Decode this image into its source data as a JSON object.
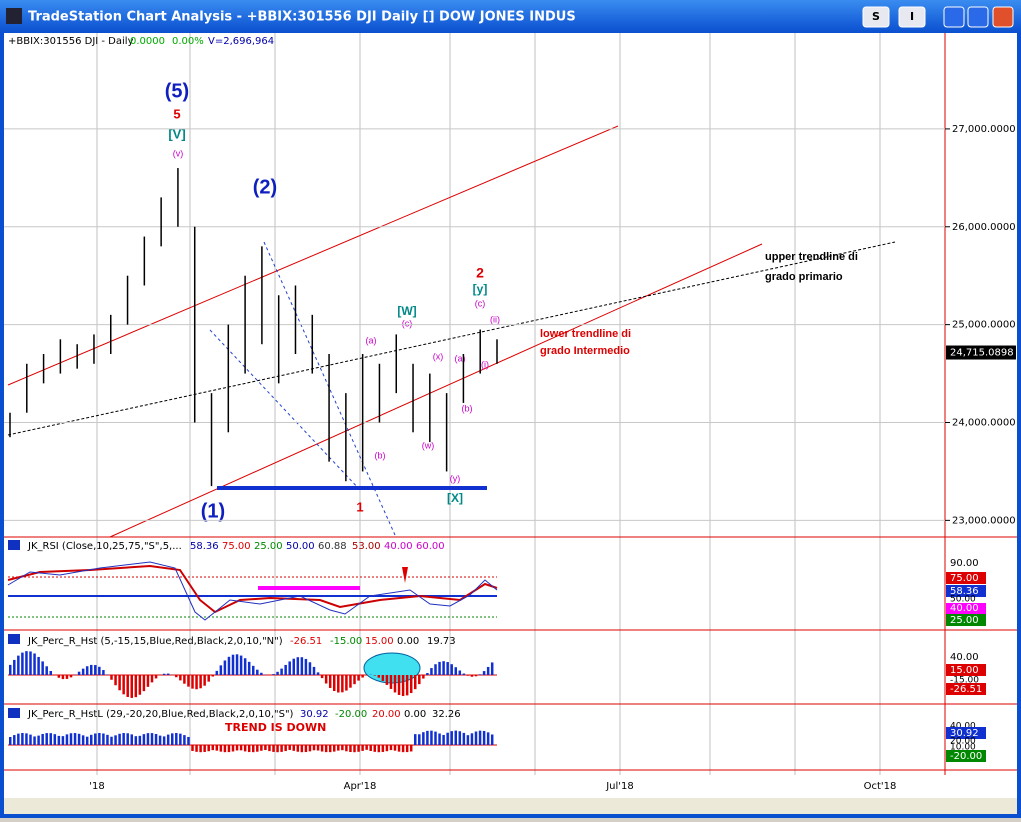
{
  "window": {
    "title": "TradeStation Chart Analysis - +BBIX:301556 DJI Daily [] DOW JONES INDUS",
    "buttons": [
      "S",
      "I"
    ]
  },
  "header": {
    "symbol": "+BBIX:301556 DJI - Daily",
    "change": "0.0000",
    "change_pct": "0.00%",
    "volume": "V=2,696,964"
  },
  "price": {
    "ylim": [
      22830,
      27980
    ],
    "yticks": [
      {
        "value": 27000,
        "label": "27,000.0000"
      },
      {
        "value": 26000,
        "label": "26,000.0000"
      },
      {
        "value": 25000,
        "label": "25,000.0000"
      },
      {
        "value": 24000,
        "label": "24,000.0000"
      },
      {
        "value": 23000,
        "label": "23,000.0000"
      }
    ],
    "last": {
      "value": 24715.0898,
      "label": "24,715.0898"
    },
    "bars": [
      [
        24100,
        23850
      ],
      [
        24600,
        24100
      ],
      [
        24700,
        24400
      ],
      [
        24850,
        24500
      ],
      [
        24800,
        24550
      ],
      [
        24900,
        24600
      ],
      [
        25100,
        24700
      ],
      [
        25500,
        25000
      ],
      [
        25900,
        25400
      ],
      [
        26300,
        25800
      ],
      [
        26600,
        26000
      ],
      [
        26000,
        24000
      ],
      [
        24300,
        23350
      ],
      [
        25000,
        23900
      ],
      [
        25500,
        24500
      ],
      [
        25800,
        24800
      ],
      [
        25300,
        24400
      ],
      [
        25400,
        24700
      ],
      [
        25100,
        24500
      ],
      [
        24700,
        23600
      ],
      [
        24300,
        23400
      ],
      [
        24700,
        23500
      ],
      [
        24600,
        24000
      ],
      [
        24900,
        24300
      ],
      [
        24600,
        23900
      ],
      [
        24500,
        23800
      ],
      [
        24300,
        23500
      ],
      [
        24700,
        24200
      ],
      [
        24950,
        24500
      ],
      [
        24850,
        24600
      ]
    ]
  },
  "annotations": [
    "(5)",
    "5",
    "[V]",
    "(v)",
    "(2)",
    "(1)",
    "1",
    "(a)",
    "(b)",
    "[W]",
    "(c)",
    "(x)",
    "(w)",
    "(a)",
    "(b)",
    "(y)",
    "[X]",
    "2",
    "[y]",
    "(c)",
    "(ii)",
    "(i)",
    "upper trendline di",
    "grado primario",
    "lower trendline di",
    "grado Intermedio"
  ],
  "rsi": {
    "header": "JK_RSI (Close,10,25,75,\"S\",5,...",
    "values": [
      "58.36",
      "75.00",
      "25.00",
      "50.00",
      "60.88",
      "53.00",
      "40.00",
      "60.00"
    ],
    "axis": [
      "90.00",
      "75.00",
      "58.36",
      "50.00",
      "40.00",
      "25.00"
    ]
  },
  "perc": {
    "header": "JK_Perc_R_Hst (5,-15,15,Blue,Red,Black,2,0,10,\"N\")",
    "values": [
      "-26.51",
      "-15.00",
      "15.00",
      "0.00",
      "19.73"
    ],
    "axis": [
      "40.00",
      "15.00",
      "-15.00",
      "-26.51"
    ]
  },
  "percl": {
    "header": "JK_Perc_R_HstL (29,-20,20,Blue,Red,Black,2,0,10,\"S\")",
    "values": [
      "30.92",
      "-20.00",
      "20.00",
      "0.00",
      "32.26"
    ],
    "note": "TREND IS DOWN",
    "axis": [
      "40.00",
      "30.92",
      "20.00",
      "10.00",
      "-20.00"
    ]
  },
  "dates": [
    "'18",
    "Apr'18",
    "Jul'18",
    "Oct'18"
  ]
}
